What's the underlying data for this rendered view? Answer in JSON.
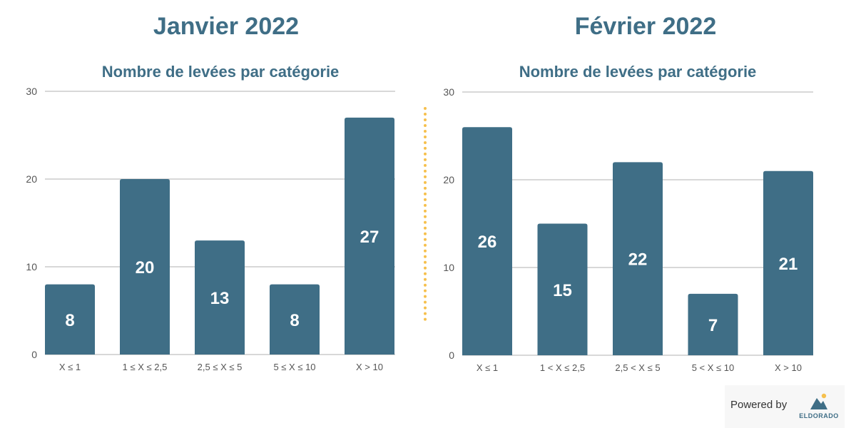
{
  "colors": {
    "bar": "#3f6e86",
    "title": "#3f6e86",
    "grid": "#cccccc",
    "axis_text": "#555555",
    "bar_label": "#ffffff",
    "divider": "#f6c04d",
    "brand": "#3f6e86"
  },
  "charts": [
    {
      "month_title": "Janvier 2022",
      "chart_title": "Nombre de levées par catégorie"
    },
    {
      "month_title": "Février 2022",
      "chart_title": "Nombre de levées par catégorie"
    }
  ],
  "chart_data": [
    {
      "type": "bar",
      "title": "Nombre de levées par catégorie",
      "categories": [
        "X ≤ 1",
        "1 ≤ X ≤ 2,5",
        "2,5 ≤ X ≤ 5",
        "5 ≤ X ≤ 10",
        "X > 10"
      ],
      "values": [
        8,
        20,
        13,
        8,
        27
      ],
      "ylim": [
        0,
        30
      ],
      "yticks": [
        0,
        10,
        20,
        30
      ],
      "grid": true
    },
    {
      "type": "bar",
      "title": "Nombre de levées par catégorie",
      "categories": [
        "X ≤ 1",
        "1 < X ≤ 2,5",
        "2,5 < X ≤ 5",
        "5 < X ≤ 10",
        "X > 10"
      ],
      "values": [
        26,
        15,
        22,
        7,
        21
      ],
      "ylim": [
        0,
        30
      ],
      "yticks": [
        0,
        10,
        20,
        30
      ],
      "grid": true
    }
  ],
  "footer": {
    "powered_by": "Powered by",
    "brand_name": "ELDORADO",
    "logo_icon": "mountain-icon"
  }
}
